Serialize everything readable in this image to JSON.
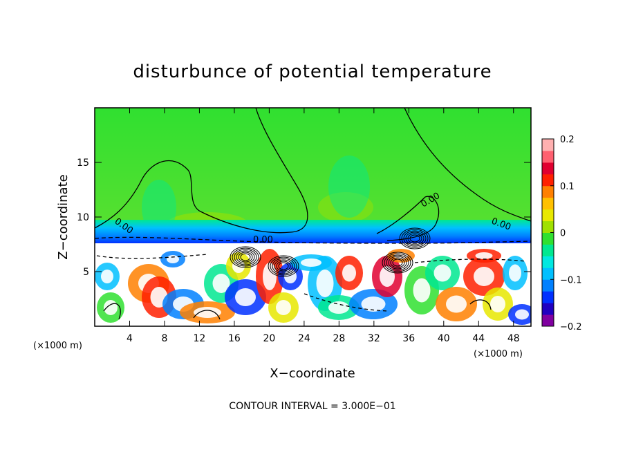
{
  "chart_data": {
    "type": "heatmap",
    "title": "disturbunce of potential temperature",
    "xlabel": "X−coordinate",
    "ylabel": "Z−coordinate",
    "x_unit_left": "(×1000 m)",
    "x_unit_right": "(×1000 m)",
    "footer": "CONTOUR INTERVAL = 3.000E−01",
    "xlim": [
      0,
      50
    ],
    "ylim": [
      0,
      20
    ],
    "x_ticks": [
      4,
      8,
      12,
      16,
      20,
      24,
      28,
      32,
      36,
      40,
      44,
      48
    ],
    "x_tick_labels": [
      "4",
      "8",
      "12",
      "16",
      "20",
      "24",
      "28",
      "32",
      "36",
      "40",
      "44",
      "48"
    ],
    "y_ticks": [
      5,
      10,
      15
    ],
    "y_tick_labels": [
      "5",
      "10",
      "15"
    ],
    "colorbar": {
      "range": [
        -0.2,
        0.2
      ],
      "ticks": [
        0.2,
        0.1,
        0,
        -0.1,
        -0.2
      ],
      "tick_labels": [
        "0.2",
        "0.1",
        "0",
        "−0.1",
        "−0.2"
      ],
      "colors": [
        "#8000a0",
        "#2000c0",
        "#0030ff",
        "#0080ff",
        "#00c0ff",
        "#00e8e0",
        "#00e890",
        "#30e030",
        "#a0e000",
        "#e8e800",
        "#ffc000",
        "#ff8000",
        "#ff2000",
        "#e00030",
        "#ff6070",
        "#ffb0b0"
      ]
    },
    "contour_interval": 0.3,
    "contour_labels": [
      "0.00",
      "0.00",
      "0.00",
      "0.00"
    ],
    "tropopause_height": 7.5
  }
}
